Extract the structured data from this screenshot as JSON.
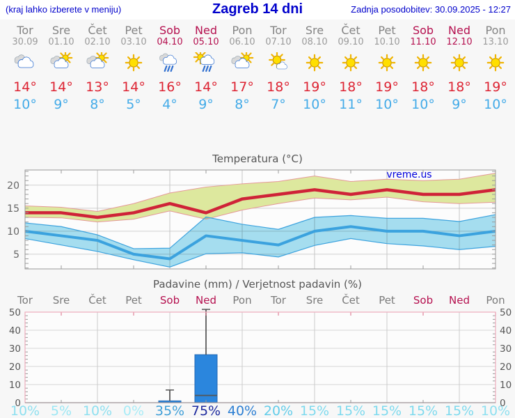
{
  "header": {
    "note": "(kraj lahko izberete v meniju)",
    "title": "Zagreb 14 dni",
    "updated": "Zadnja posodobitev: 30.09.2025 - 12:27"
  },
  "colors": {
    "accent_blue": "#0000cc",
    "weekday_text": "#848484",
    "weekend_text": "#b5104f",
    "high_temp": "#dd2433",
    "low_temp": "#44abe8",
    "max_line": "#cf2338",
    "max_band_fill": "#dde89e",
    "max_band_edge": "#e59898",
    "min_line": "#3ba2de",
    "min_band_fill": "#a7e0f2",
    "bar_fill": "#2b86dd",
    "whisker": "#555555",
    "temp_frame": "#999999",
    "precip_frame": "#eeacbc",
    "grid": "#cfcfcf"
  },
  "days": [
    {
      "name": "Tor",
      "date": "30.09",
      "weekend": false,
      "icon": "cloudy",
      "high": "14°",
      "low": "10°",
      "prob": "10%",
      "prob_color": "#8fe0f0"
    },
    {
      "name": "Sre",
      "date": "01.10",
      "weekend": false,
      "icon": "partly-sunny",
      "high": "14°",
      "low": "9°",
      "prob": "5%",
      "prob_color": "#9ce7f4"
    },
    {
      "name": "Čet",
      "date": "02.10",
      "weekend": false,
      "icon": "partly-sunny",
      "high": "13°",
      "low": "8°",
      "prob": "10%",
      "prob_color": "#8fe0f0"
    },
    {
      "name": "Pet",
      "date": "03.10",
      "weekend": false,
      "icon": "sunny",
      "high": "14°",
      "low": "5°",
      "prob": "0%",
      "prob_color": "#a8ecf7"
    },
    {
      "name": "Sob",
      "date": "04.10",
      "weekend": true,
      "icon": "rain",
      "high": "16°",
      "low": "4°",
      "prob": "35%",
      "prob_color": "#3f9fd8"
    },
    {
      "name": "Ned",
      "date": "05.10",
      "weekend": true,
      "icon": "sun-rain",
      "high": "14°",
      "low": "9°",
      "prob": "75%",
      "prob_color": "#1d2a9e"
    },
    {
      "name": "Pon",
      "date": "06.10",
      "weekend": false,
      "icon": "partly-sunny",
      "high": "17°",
      "low": "8°",
      "prob": "40%",
      "prob_color": "#2d7fd3"
    },
    {
      "name": "Tor",
      "date": "07.10",
      "weekend": false,
      "icon": "mostly-sunny",
      "high": "18°",
      "low": "7°",
      "prob": "20%",
      "prob_color": "#63cdea"
    },
    {
      "name": "Sre",
      "date": "08.10",
      "weekend": false,
      "icon": "sunny",
      "high": "19°",
      "low": "10°",
      "prob": "15%",
      "prob_color": "#7edaee"
    },
    {
      "name": "Čet",
      "date": "09.10",
      "weekend": false,
      "icon": "sunny",
      "high": "18°",
      "low": "11°",
      "prob": "15%",
      "prob_color": "#7edaee"
    },
    {
      "name": "Pet",
      "date": "10.10",
      "weekend": false,
      "icon": "sunny",
      "high": "19°",
      "low": "10°",
      "prob": "15%",
      "prob_color": "#7edaee"
    },
    {
      "name": "Sob",
      "date": "11.10",
      "weekend": true,
      "icon": "sunny",
      "high": "18°",
      "low": "10°",
      "prob": "15%",
      "prob_color": "#7edaee"
    },
    {
      "name": "Ned",
      "date": "12.10",
      "weekend": true,
      "icon": "sunny",
      "high": "18°",
      "low": "9°",
      "prob": "15%",
      "prob_color": "#7edaee"
    },
    {
      "name": "Pon",
      "date": "13.10",
      "weekend": false,
      "icon": "sunny",
      "high": "19°",
      "low": "10°",
      "prob": "10%",
      "prob_color": "#8fe0f0"
    }
  ],
  "chart_data": [
    {
      "type": "area",
      "title": "Temperatura (°C)",
      "watermark": "vreme.us",
      "categories": [
        "30.09",
        "01.10",
        "02.10",
        "03.10",
        "04.10",
        "05.10",
        "06.10",
        "07.10",
        "08.10",
        "09.10",
        "10.10",
        "11.10",
        "12.10",
        "13.10"
      ],
      "series": [
        {
          "name": "max temperatura",
          "values": [
            14,
            14,
            13,
            14,
            16,
            14,
            17,
            18,
            19,
            18,
            19,
            18,
            18,
            19
          ],
          "band_upper": [
            15.5,
            15.2,
            14.3,
            16,
            18.3,
            19.6,
            20.3,
            20.8,
            22,
            20.8,
            21.3,
            21,
            21.3,
            22.6
          ],
          "band_lower": [
            13,
            12.9,
            12,
            12.6,
            14.4,
            12.6,
            14.6,
            16,
            17.2,
            16.8,
            17.4,
            16.4,
            16,
            16.3
          ]
        },
        {
          "name": "min temperatura",
          "values": [
            10,
            9,
            8,
            5,
            4,
            9,
            8,
            7,
            10,
            11,
            10,
            10,
            9,
            10
          ],
          "band_upper": [
            11.8,
            11,
            9.2,
            6.2,
            6.3,
            13.1,
            11.5,
            10.4,
            13,
            13.4,
            12.8,
            12.8,
            12.1,
            13.6
          ],
          "band_lower": [
            8.4,
            7,
            5.6,
            3.8,
            2.2,
            5.1,
            5.3,
            4.4,
            6.9,
            8.4,
            7.3,
            6.8,
            6,
            6.7
          ]
        }
      ],
      "ylim": [
        1.8,
        23.3
      ],
      "yticks": [
        5,
        10,
        15,
        20
      ],
      "grid": true
    },
    {
      "type": "bar",
      "title": "Padavine (mm) / Verjetnost padavin (%)",
      "categories": [
        "Tor",
        "Sre",
        "Čet",
        "Pet",
        "Sob",
        "Ned",
        "Pon",
        "Tor",
        "Sre",
        "Čet",
        "Pet",
        "Sob",
        "Ned",
        "Pon"
      ],
      "values": [
        0,
        0,
        0,
        0,
        1,
        26.5,
        0,
        0,
        0,
        0,
        0,
        0,
        0,
        0
      ],
      "whisker_high": [
        0,
        0,
        0,
        0,
        7,
        51.5,
        0,
        0,
        0,
        0,
        0,
        0,
        0,
        0
      ],
      "box_mark": [
        null,
        null,
        null,
        null,
        null,
        4,
        null,
        null,
        null,
        null,
        null,
        null,
        null,
        null
      ],
      "probabilities_pct": [
        10,
        5,
        10,
        0,
        35,
        75,
        40,
        20,
        15,
        15,
        15,
        15,
        15,
        10
      ],
      "ylim": [
        0,
        50
      ],
      "yticks": [
        0,
        10,
        20,
        30,
        40,
        50
      ],
      "grid": true,
      "legend": "none"
    }
  ]
}
